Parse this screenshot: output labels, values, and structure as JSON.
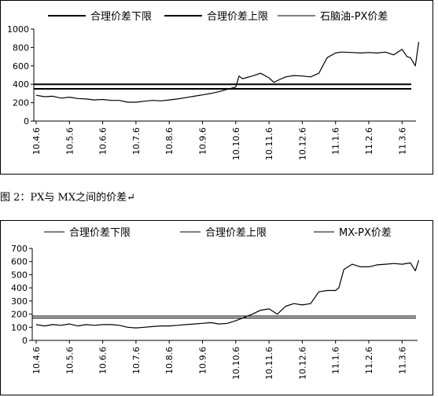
{
  "caption": "图 2：PX与 MX之间的价差↵",
  "chart_data": [
    {
      "type": "line",
      "title": "",
      "xlabel": "",
      "ylabel": "",
      "legend_position": "top",
      "categories": [
        "10.4.6",
        "10.5.6",
        "10.6.6",
        "10.7.6",
        "10.8.6",
        "10.9.6",
        "10.10.6",
        "10.11.6",
        "10.12.6",
        "11.1.6",
        "11.2.6",
        "11.3.6"
      ],
      "yticks": [
        0,
        200,
        400,
        600,
        800,
        1000
      ],
      "ylim": [
        0,
        1000
      ],
      "grid": false,
      "series": [
        {
          "name": "合理价差下限",
          "kind": "constant",
          "value": 350,
          "color": "#000000"
        },
        {
          "name": "合理价差上限",
          "kind": "constant",
          "value": 400,
          "color": "#000000"
        },
        {
          "name": "石脑油-PX价差",
          "kind": "line",
          "color": "#000000",
          "x": [
            0,
            0.25,
            0.5,
            0.75,
            1,
            1.25,
            1.5,
            1.75,
            2,
            2.25,
            2.5,
            2.75,
            3,
            3.25,
            3.5,
            3.75,
            4,
            4.25,
            4.5,
            4.75,
            5,
            5.25,
            5.5,
            5.75,
            6,
            6.1,
            6.2,
            6.3,
            6.5,
            6.75,
            7,
            7.15,
            7.25,
            7.5,
            7.75,
            8,
            8.25,
            8.5,
            8.75,
            9,
            9.15,
            9.25,
            9.5,
            9.75,
            10,
            10.25,
            10.5,
            10.75,
            11,
            11.15,
            11.25,
            11.4,
            11.5
          ],
          "y": [
            280,
            265,
            270,
            250,
            260,
            245,
            240,
            230,
            235,
            225,
            225,
            205,
            205,
            215,
            225,
            220,
            230,
            240,
            255,
            270,
            285,
            300,
            320,
            345,
            370,
            490,
            460,
            470,
            490,
            520,
            470,
            420,
            440,
            480,
            495,
            490,
            480,
            520,
            690,
            740,
            750,
            750,
            745,
            740,
            745,
            740,
            750,
            720,
            780,
            700,
            690,
            600,
            860
          ]
        }
      ]
    },
    {
      "type": "line",
      "title": "",
      "xlabel": "",
      "ylabel": "",
      "legend_position": "top",
      "categories": [
        "10.4.6",
        "10.5.6",
        "10.6.6",
        "10.7.6",
        "10.8.6",
        "10.9.6",
        "10.10.6",
        "10.11.6",
        "10.12.6",
        "11.1.6",
        "11.2.6",
        "11.3.6"
      ],
      "yticks": [
        0,
        100,
        200,
        300,
        400,
        500,
        600,
        700
      ],
      "ylim": [
        0,
        700
      ],
      "grid": false,
      "series": [
        {
          "name": "合理价差下限",
          "kind": "constant",
          "value": 170,
          "color": "#000000"
        },
        {
          "name": "合理价差上限",
          "kind": "constant",
          "value": 185,
          "color": "#000000"
        },
        {
          "name": "MX-PX价差",
          "kind": "line",
          "color": "#000000",
          "x": [
            0,
            0.25,
            0.5,
            0.75,
            1,
            1.25,
            1.5,
            1.75,
            2,
            2.25,
            2.5,
            2.75,
            3,
            3.25,
            3.5,
            3.75,
            4,
            4.25,
            4.5,
            4.75,
            5,
            5.25,
            5.5,
            5.75,
            6,
            6.25,
            6.5,
            6.75,
            7,
            7.25,
            7.5,
            7.75,
            8,
            8.25,
            8.5,
            8.75,
            9,
            9.1,
            9.25,
            9.5,
            9.75,
            10,
            10.25,
            10.5,
            10.75,
            11,
            11.25,
            11.4,
            11.5
          ],
          "y": [
            120,
            110,
            120,
            115,
            125,
            110,
            120,
            115,
            120,
            120,
            115,
            100,
            95,
            100,
            105,
            110,
            110,
            115,
            120,
            125,
            130,
            135,
            125,
            130,
            150,
            175,
            200,
            230,
            240,
            200,
            260,
            280,
            270,
            280,
            370,
            380,
            380,
            400,
            540,
            580,
            560,
            560,
            575,
            580,
            585,
            580,
            590,
            530,
            610
          ]
        }
      ]
    }
  ]
}
